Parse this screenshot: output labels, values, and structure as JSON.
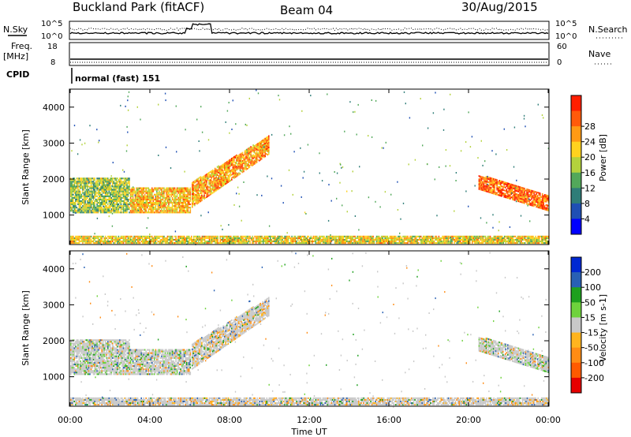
{
  "header": {
    "station": "Buckland Park (fitACF)",
    "beam": "Beam 04",
    "date": "30/Aug/2015"
  },
  "panels": {
    "nsky": {
      "label": "N.Sky",
      "ytick_top": "10^5",
      "ytick_bot": "10^0",
      "right_label": "N.Search",
      "right_tick_top": "10^5",
      "right_tick_bot": "10^0"
    },
    "freq": {
      "label_line1": "Freq.",
      "label_line2": "[MHz]",
      "ytick_top": "18",
      "ytick_bot": "8",
      "right_label": "Nave",
      "right_tick_top": "60",
      "right_tick_bot": "0"
    },
    "cpid": {
      "label": "CPID",
      "value": "normal (fast) 151"
    }
  },
  "chart_data": [
    {
      "type": "heatmap",
      "title": "",
      "xlabel": "",
      "ylabel": "Slant Range [km]",
      "xlim": [
        "00:00",
        "24:00"
      ],
      "ylim": [
        180,
        4500
      ],
      "yticks": [
        "1000",
        "2000",
        "3000",
        "4000"
      ],
      "colorbar": {
        "label": "Power [dB]",
        "ticks": [
          "4",
          "8",
          "12",
          "16",
          "20",
          "24",
          "28"
        ],
        "colors": [
          "#0000ff",
          "#1f4fb4",
          "#2f7d78",
          "#52a85a",
          "#b4d23c",
          "#ffd21e",
          "#ff9a14",
          "#ff5a0a",
          "#ff1e00"
        ]
      },
      "regions": [
        {
          "name": "echo-00-03",
          "t0": 0.0,
          "t1": 3.0,
          "r0": 1050,
          "r1": 2000,
          "level": 14
        },
        {
          "name": "echo-03-06",
          "t0": 3.0,
          "t1": 6.0,
          "r0": 1050,
          "r1": 1750,
          "level": 20
        },
        {
          "name": "echo-06-10",
          "t0": 6.1,
          "t1": 10.0,
          "r0": 1200,
          "r1": 3200,
          "level": 22
        },
        {
          "name": "echo-21-24",
          "t0": 20.5,
          "t1": 24.0,
          "r0": 1000,
          "r1": 2100,
          "level": 26
        },
        {
          "name": "ground-scatter",
          "t0": 0.0,
          "t1": 24.0,
          "r0": 200,
          "r1": 420,
          "level": 18
        }
      ]
    },
    {
      "type": "heatmap",
      "title": "",
      "xlabel": "Time UT",
      "ylabel": "Slant Range [km]",
      "xticks": [
        "00:00",
        "04:00",
        "08:00",
        "12:00",
        "16:00",
        "20:00",
        "00:00"
      ],
      "xlim": [
        "00:00",
        "24:00"
      ],
      "ylim": [
        180,
        4500
      ],
      "yticks": [
        "1000",
        "2000",
        "3000",
        "4000"
      ],
      "colorbar": {
        "label": "Velocity [m s-1]",
        "ticks": [
          "200",
          "100",
          "50",
          "15",
          "-15",
          "-50",
          "-100",
          "-200"
        ],
        "colors": [
          "#0028d2",
          "#2860b4",
          "#1ea01e",
          "#6ed23c",
          "#c8c8c8",
          "#ffb41e",
          "#ff8c14",
          "#ff5a00",
          "#e60000"
        ]
      },
      "regions": [
        {
          "name": "echo-00-03",
          "t0": 0.0,
          "t1": 3.0,
          "r0": 1050,
          "r1": 2000,
          "level": 0
        },
        {
          "name": "echo-03-06",
          "t0": 3.0,
          "t1": 6.0,
          "r0": 1050,
          "r1": 1750,
          "level": -20
        },
        {
          "name": "echo-06-10",
          "t0": 6.1,
          "t1": 10.0,
          "r0": 1200,
          "r1": 3200,
          "level": -30
        },
        {
          "name": "echo-21-24",
          "t0": 20.5,
          "t1": 24.0,
          "r0": 1000,
          "r1": 2100,
          "level": 0
        },
        {
          "name": "ground-scatter",
          "t0": 0.0,
          "t1": 24.0,
          "r0": 200,
          "r1": 420,
          "level": -40
        }
      ]
    }
  ]
}
